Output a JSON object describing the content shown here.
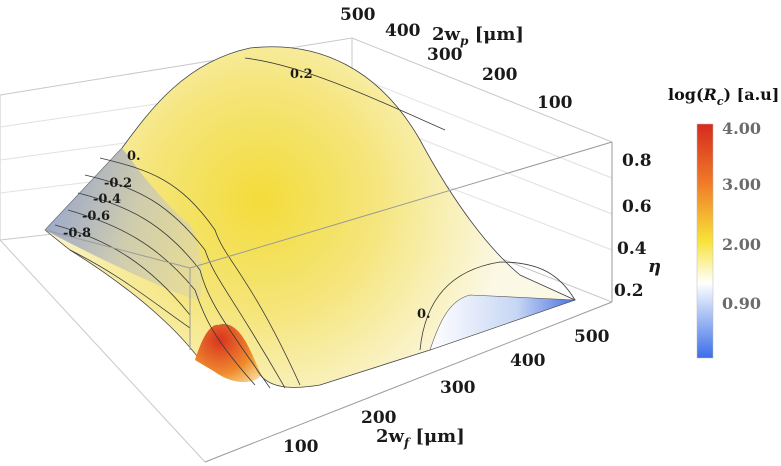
{
  "chart_data": {
    "type": "surface3d",
    "x_axis": {
      "label_main": "2w",
      "label_sub": "f",
      "label_unit": " [μm]",
      "ticks": [
        "100",
        "200",
        "300",
        "400",
        "500"
      ]
    },
    "y_axis": {
      "label_main": "2w",
      "label_sub": "p",
      "label_unit": " [μm]",
      "ticks": [
        "100",
        "200",
        "300",
        "400",
        "500"
      ]
    },
    "z_axis": {
      "label": "η",
      "ticks": [
        "0.2",
        "0.4",
        "0.6",
        "0.8"
      ]
    },
    "contour_labels": [
      "0.2",
      "0.",
      "-0.2",
      "-0.4",
      "-0.6",
      "-0.8",
      "0."
    ],
    "colorbar": {
      "title_pre": "log(",
      "title_var": "R",
      "title_sub": "c",
      "title_post": ") [a.u]",
      "ticks": [
        "4.00",
        "3.00",
        "2.00",
        "0.90"
      ],
      "colors": [
        "#d62a1e",
        "#f07a28",
        "#f7e33a",
        "#ffffff",
        "#3a6ee8"
      ]
    }
  }
}
